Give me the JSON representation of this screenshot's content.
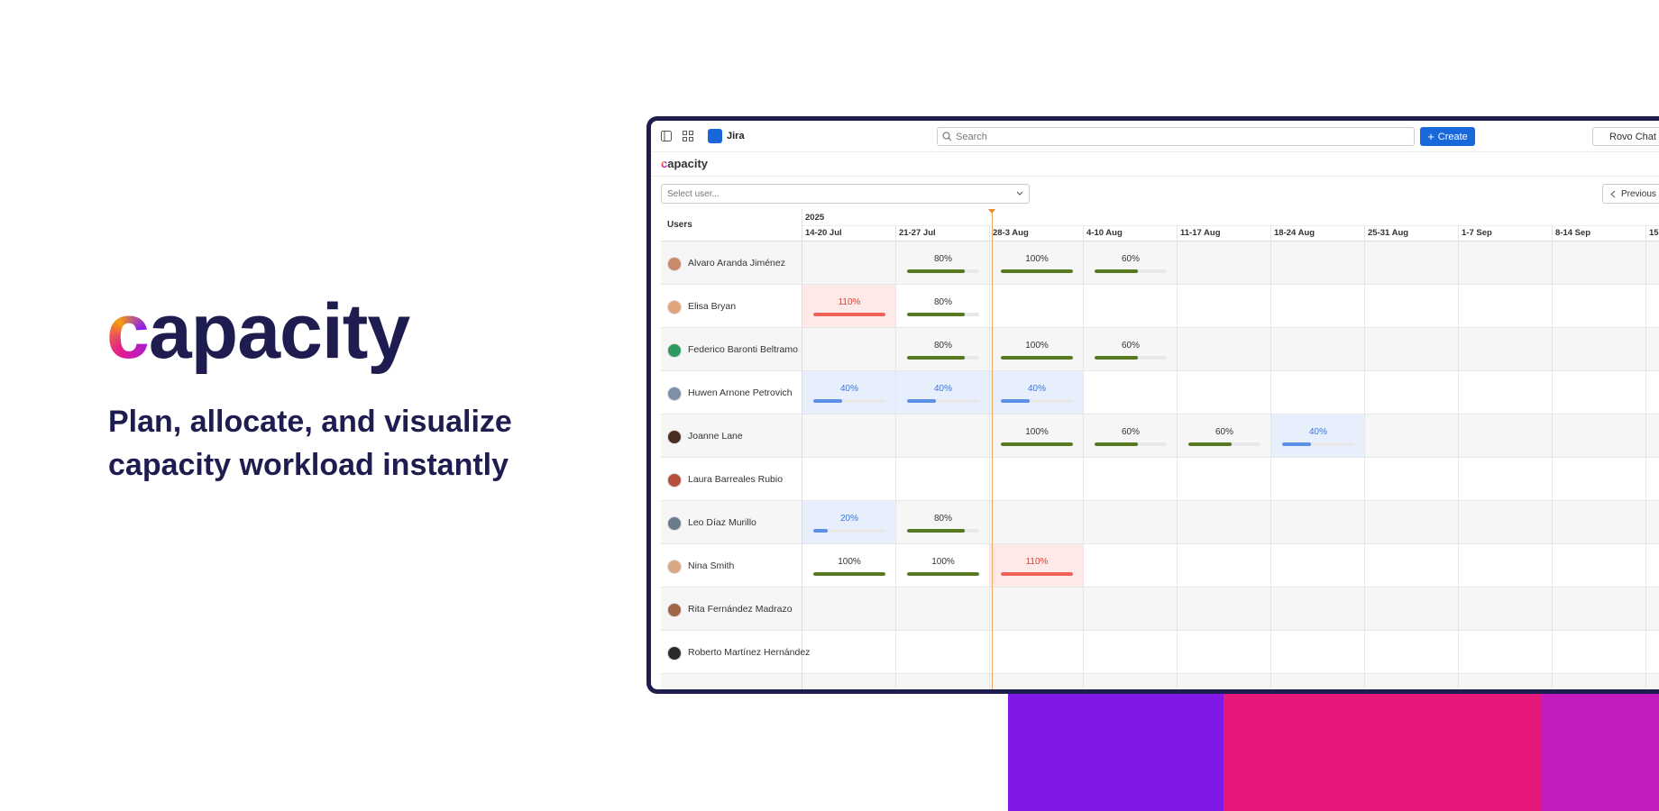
{
  "hero": {
    "logo": "capacity",
    "tagline_lines": [
      "Plan, allocate, and visualize",
      "capacity workload instantly"
    ]
  },
  "app": {
    "product": "Jira",
    "search_placeholder": "Search",
    "create_button": "Create",
    "chat_button": "Rovo Chat",
    "logo": "capacity",
    "user_select_placeholder": "Select user...",
    "previous_button": "Previous",
    "users_header": "Users",
    "year": "2025",
    "weeks": [
      "14-20 Jul",
      "21-27 Jul",
      "28-3 Aug",
      "4-10 Aug",
      "11-17 Aug",
      "18-24 Aug",
      "25-31 Aug",
      "1-7 Sep",
      "8-14 Sep",
      "15"
    ],
    "users": [
      {
        "name": "Alvaro Aranda Jiménez",
        "allocations": [
          null,
          80,
          100,
          60,
          null,
          null,
          null,
          null,
          null,
          null
        ],
        "allocation_labels": [
          null,
          "80%",
          "100%",
          "60%",
          null,
          null,
          null,
          null,
          null,
          null
        ]
      },
      {
        "name": "Elisa Bryan",
        "allocations": [
          110,
          80,
          null,
          null,
          null,
          null,
          null,
          null,
          null,
          null
        ],
        "allocation_labels": [
          "110%",
          "80%",
          null,
          null,
          null,
          null,
          null,
          null,
          null,
          null
        ]
      },
      {
        "name": "Federico Baronti Beltramo",
        "allocations": [
          null,
          80,
          100,
          60,
          null,
          null,
          null,
          null,
          null,
          null
        ],
        "allocation_labels": [
          null,
          "80%",
          "100%",
          "60%",
          null,
          null,
          null,
          null,
          null,
          null
        ]
      },
      {
        "name": "Huwen Arnone Petrovich",
        "allocations": [
          40,
          40,
          40,
          null,
          null,
          null,
          null,
          null,
          null,
          null
        ],
        "allocation_labels": [
          "40%",
          "40%",
          "40%",
          null,
          null,
          null,
          null,
          null,
          null,
          null
        ]
      },
      {
        "name": "Joanne Lane",
        "allocations": [
          null,
          null,
          100,
          60,
          60,
          40,
          null,
          null,
          null,
          null
        ],
        "allocation_labels": [
          null,
          null,
          "100%",
          "60%",
          "60%",
          "40%",
          null,
          null,
          null,
          null
        ]
      },
      {
        "name": "Laura Barreales Rubio",
        "allocations": [
          null,
          null,
          null,
          null,
          null,
          null,
          null,
          null,
          null,
          null
        ],
        "allocation_labels": [
          null,
          null,
          null,
          null,
          null,
          null,
          null,
          null,
          null,
          null
        ]
      },
      {
        "name": "Leo Díaz Murillo",
        "allocations": [
          20,
          80,
          null,
          null,
          null,
          null,
          null,
          null,
          null,
          null
        ],
        "allocation_labels": [
          "20%",
          "80%",
          null,
          null,
          null,
          null,
          null,
          null,
          null,
          null
        ]
      },
      {
        "name": "Nina Smith",
        "allocations": [
          100,
          100,
          110,
          null,
          null,
          null,
          null,
          null,
          null,
          null
        ],
        "allocation_labels": [
          "100%",
          "100%",
          "110%",
          null,
          null,
          null,
          null,
          null,
          null,
          null
        ]
      },
      {
        "name": "Rita Fernández Madrazo",
        "allocations": [
          null,
          null,
          null,
          null,
          null,
          null,
          null,
          null,
          null,
          null
        ],
        "allocation_labels": [
          null,
          null,
          null,
          null,
          null,
          null,
          null,
          null,
          null,
          null
        ]
      },
      {
        "name": "Roberto Martínez Hernández",
        "allocations": [
          null,
          null,
          null,
          null,
          null,
          null,
          null,
          null,
          null,
          null
        ],
        "allocation_labels": [
          null,
          null,
          null,
          null,
          null,
          null,
          null,
          null,
          null,
          null
        ]
      }
    ]
  }
}
